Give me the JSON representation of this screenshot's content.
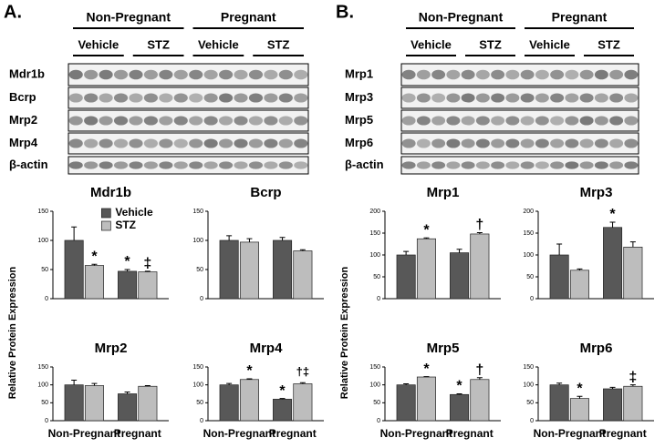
{
  "panels": [
    {
      "label": "A.",
      "groups": [
        "Non-Pregnant",
        "Pregnant"
      ],
      "subgroups": [
        "Vehicle",
        "STZ",
        "Vehicle",
        "STZ"
      ],
      "blots": [
        "Mdr1b",
        "Bcrp",
        "Mrp2",
        "Mrp4",
        "β-actin"
      ]
    },
    {
      "label": "B.",
      "groups": [
        "Non-Pregnant",
        "Pregnant"
      ],
      "subgroups": [
        "Vehicle",
        "STZ",
        "Vehicle",
        "STZ"
      ],
      "blots": [
        "Mrp1",
        "Mrp3",
        "Mrp5",
        "Mrp6",
        "β-actin"
      ]
    }
  ],
  "chart_data": [
    {
      "type": "bar",
      "title": "Mdr1b",
      "y_label": "Relative Protein Expression",
      "categories": [
        null,
        null
      ],
      "series": [
        {
          "name": "Vehicle",
          "color": "#585858",
          "values": [
            100,
            47
          ],
          "errors": [
            23,
            3
          ]
        },
        {
          "name": "STZ",
          "color": "#bdbdbd",
          "values": [
            57,
            46
          ],
          "errors": [
            2,
            1
          ]
        }
      ],
      "ylim": [
        0,
        150
      ],
      "yticks": [
        0,
        50,
        100,
        150
      ],
      "annotations": [
        {
          "text": "*",
          "series": 1,
          "category": 0
        },
        {
          "text": "*",
          "series": 0,
          "category": 1
        },
        {
          "text": "‡",
          "series": 1,
          "category": 1
        }
      ]
    },
    {
      "type": "bar",
      "title": "Bcrp",
      "categories": [
        null,
        null
      ],
      "series": [
        {
          "color": "#585858",
          "values": [
            100,
            100
          ],
          "errors": [
            8,
            5
          ]
        },
        {
          "color": "#bdbdbd",
          "values": [
            97,
            82
          ],
          "errors": [
            6,
            2
          ]
        }
      ],
      "ylim": [
        0,
        150
      ],
      "yticks": [
        0,
        50,
        100,
        150
      ],
      "annotations": []
    },
    {
      "type": "bar",
      "title": "Mrp2",
      "categories": [
        "Non-Pregnant",
        "Pregnant"
      ],
      "series": [
        {
          "color": "#585858",
          "values": [
            100,
            75
          ],
          "errors": [
            13,
            5
          ]
        },
        {
          "color": "#bdbdbd",
          "values": [
            98,
            96
          ],
          "errors": [
            6,
            2
          ]
        }
      ],
      "ylim": [
        0,
        150
      ],
      "yticks": [
        0,
        50,
        100,
        150
      ],
      "annotations": []
    },
    {
      "type": "bar",
      "title": "Mrp4",
      "categories": [
        "Non-Pregnant",
        "Pregnant"
      ],
      "series": [
        {
          "color": "#585858",
          "values": [
            100,
            60
          ],
          "errors": [
            4,
            2
          ]
        },
        {
          "color": "#bdbdbd",
          "values": [
            115,
            103
          ],
          "errors": [
            2,
            3
          ]
        }
      ],
      "ylim": [
        0,
        150
      ],
      "yticks": [
        0,
        50,
        100,
        150
      ],
      "annotations": [
        {
          "text": "*",
          "series": 1,
          "category": 0
        },
        {
          "text": "*",
          "series": 0,
          "category": 1
        },
        {
          "text": "†‡",
          "series": 1,
          "category": 1
        }
      ]
    },
    {
      "type": "bar",
      "title": "Mrp1",
      "y_label": "Relative Protein Expression",
      "categories": [
        null,
        null
      ],
      "series": [
        {
          "color": "#585858",
          "values": [
            100,
            105
          ],
          "errors": [
            8,
            8
          ]
        },
        {
          "color": "#bdbdbd",
          "values": [
            137,
            148
          ],
          "errors": [
            2,
            3
          ]
        }
      ],
      "ylim": [
        0,
        200
      ],
      "yticks": [
        0,
        50,
        100,
        150,
        200
      ],
      "annotations": [
        {
          "text": "*",
          "series": 1,
          "category": 0
        },
        {
          "text": "†",
          "series": 1,
          "category": 1
        }
      ]
    },
    {
      "type": "bar",
      "title": "Mrp3",
      "categories": [
        null,
        null
      ],
      "series": [
        {
          "color": "#585858",
          "values": [
            100,
            163
          ],
          "errors": [
            25,
            12
          ]
        },
        {
          "color": "#bdbdbd",
          "values": [
            65,
            118
          ],
          "errors": [
            3,
            12
          ]
        }
      ],
      "ylim": [
        0,
        200
      ],
      "yticks": [
        0,
        50,
        100,
        150,
        200
      ],
      "annotations": [
        {
          "text": "*",
          "series": 0,
          "category": 1
        }
      ]
    },
    {
      "type": "bar",
      "title": "Mrp5",
      "categories": [
        "Non-Pregnant",
        "Pregnant"
      ],
      "series": [
        {
          "color": "#585858",
          "values": [
            100,
            73
          ],
          "errors": [
            3,
            2
          ]
        },
        {
          "color": "#bdbdbd",
          "values": [
            122,
            115
          ],
          "errors": [
            1,
            5
          ]
        }
      ],
      "ylim": [
        0,
        150
      ],
      "yticks": [
        0,
        50,
        100,
        150
      ],
      "annotations": [
        {
          "text": "*",
          "series": 1,
          "category": 0
        },
        {
          "text": "*",
          "series": 0,
          "category": 1
        },
        {
          "text": "†",
          "series": 1,
          "category": 1
        }
      ]
    },
    {
      "type": "bar",
      "title": "Mrp6",
      "categories": [
        "Non-Pregnant",
        "Pregnant"
      ],
      "series": [
        {
          "color": "#585858",
          "values": [
            100,
            89
          ],
          "errors": [
            5,
            4
          ]
        },
        {
          "color": "#bdbdbd",
          "values": [
            62,
            96
          ],
          "errors": [
            6,
            4
          ]
        }
      ],
      "ylim": [
        0,
        150
      ],
      "yticks": [
        0,
        50,
        100,
        150
      ],
      "annotations": [
        {
          "text": "*",
          "series": 1,
          "category": 0
        },
        {
          "text": "‡",
          "series": 1,
          "category": 1
        }
      ]
    }
  ]
}
